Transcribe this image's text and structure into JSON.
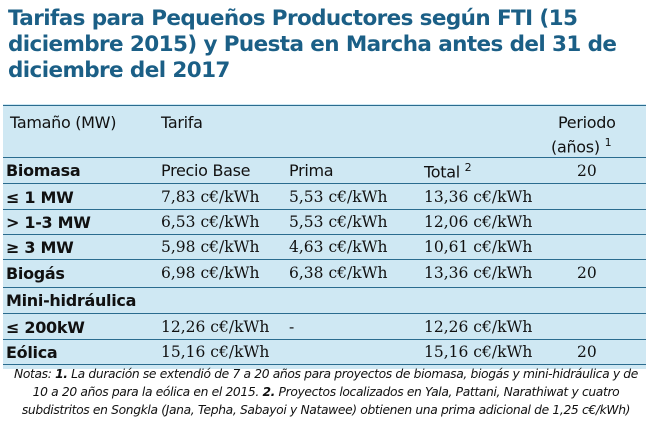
{
  "title": "Tarifas para Pequeños Productores según FTI (15 diciembre 2015) y Puesta en Marcha antes del 31 de diciembre del 2017",
  "header": {
    "size": "Tamaño (MW)",
    "tariff": "Tarifa",
    "period": "Periodo",
    "period_sub": "(años)",
    "period_sup": "1"
  },
  "biomass": {
    "label": "Biomasa",
    "col_base": "Precio Base",
    "col_prima": "Prima",
    "col_total": "Total",
    "col_total_sup": "2",
    "period": "20"
  },
  "rows": [
    {
      "label": "≤ 1 MW",
      "base": "7,83 c€/kWh",
      "prima": "5,53 c€/kWh",
      "total": "13,36 c€/kWh",
      "period": ""
    },
    {
      "label": "> 1-3 MW",
      "base": "6,53 c€/kWh",
      "prima": "5,53 c€/kWh",
      "total": "12,06 c€/kWh",
      "period": ""
    },
    {
      "label": "≥ 3 MW",
      "base": "5,98 c€/kWh",
      "prima": "4,63 c€/kWh",
      "total": "10,61 c€/kWh",
      "period": ""
    },
    {
      "label": "Biogás",
      "base": "6,98 c€/kWh",
      "prima": "6,38 c€/kWh",
      "total": "13,36 c€/kWh",
      "period": "20"
    },
    {
      "label": "Mini-hidráulica",
      "base": "",
      "prima": "",
      "total": "",
      "period": ""
    },
    {
      "label": "≤ 200kW",
      "base": "12,26 c€/kWh",
      "prima": "-",
      "total": "12,26 c€/kWh",
      "period": ""
    },
    {
      "label": "Eólica",
      "base": "15,16 c€/kWh",
      "prima": "",
      "total": "15,16 c€/kWh",
      "period": "20"
    }
  ],
  "notes": {
    "prefix": "Notas: ",
    "n1_num": "1.",
    "n1_text": " La duración se extendió de 7 a 20 años para proyectos de biomasa, biogás y mini-hidráulica y de 10 a 20 años para la eólica en el 2015. ",
    "n2_num": "2.",
    "n2_text": " Proyectos localizados en Yala, Pattani, Narathiwat y cuatro subdistritos en Songkla (Jana, Tepha, Sabayoi y Natawee) obtienen una prima adicional de 1,25 c€/kWh)"
  },
  "colors": {
    "title": "#1b5f86",
    "table_bg": "#cfe8f3",
    "rule": "#2b6c8f"
  }
}
